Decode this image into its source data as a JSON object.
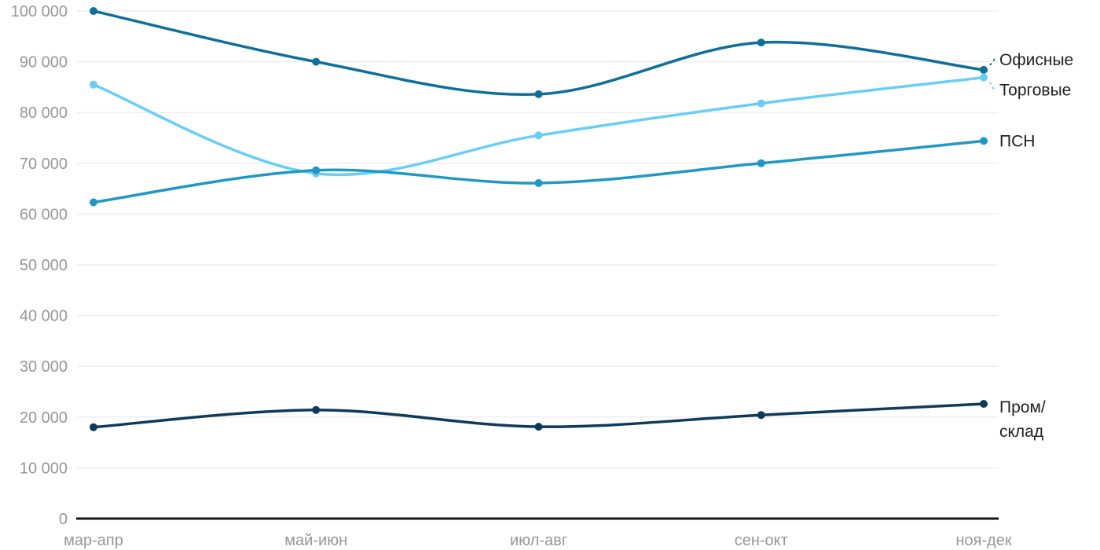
{
  "chart_data": {
    "type": "line",
    "title": "",
    "xlabel": "",
    "ylabel": "",
    "categories": [
      "мар-апр",
      "май-июн",
      "июл-авг",
      "сен-окт",
      "ноя-дек"
    ],
    "series": [
      {
        "name": "Офисные",
        "color": "#0f6f9b",
        "values": [
          100000,
          90000,
          83600,
          93800,
          88400
        ],
        "label_lines": [
          "Офисные"
        ],
        "label_offset_y": -13,
        "connector": true
      },
      {
        "name": "Торговые",
        "color": "#68cef7",
        "values": [
          85500,
          68000,
          75500,
          81800,
          86900
        ],
        "label_lines": [
          "Торговые"
        ],
        "label_offset_y": 16,
        "connector": true
      },
      {
        "name": "ПСН",
        "color": "#2098c5",
        "values": [
          62300,
          68600,
          66100,
          70000,
          74400
        ],
        "label_lines": [
          "ПСН"
        ],
        "label_offset_y": 0,
        "connector": false
      },
      {
        "name": "Пром/склад",
        "color": "#0e3a5c",
        "values": [
          18000,
          21400,
          18100,
          20400,
          22600
        ],
        "label_lines": [
          "Пром/",
          "склад"
        ],
        "label_offset_y": 4,
        "connector": false
      }
    ],
    "ylim": [
      0,
      100000
    ],
    "ytick_step": 10000,
    "ytick_labels": [
      "0",
      "10 000",
      "20 000",
      "30 000",
      "40 000",
      "50 000",
      "60 000",
      "70 000",
      "80 000",
      "90 000",
      "100 000"
    ],
    "grid": true,
    "legend_position": "inline-right-labels",
    "colors": {
      "grid_line": "#e6e6e6",
      "axis_line": "#161616",
      "tick_text": "#969696",
      "series_label_text": "#212121",
      "background": "#ffffff"
    }
  }
}
